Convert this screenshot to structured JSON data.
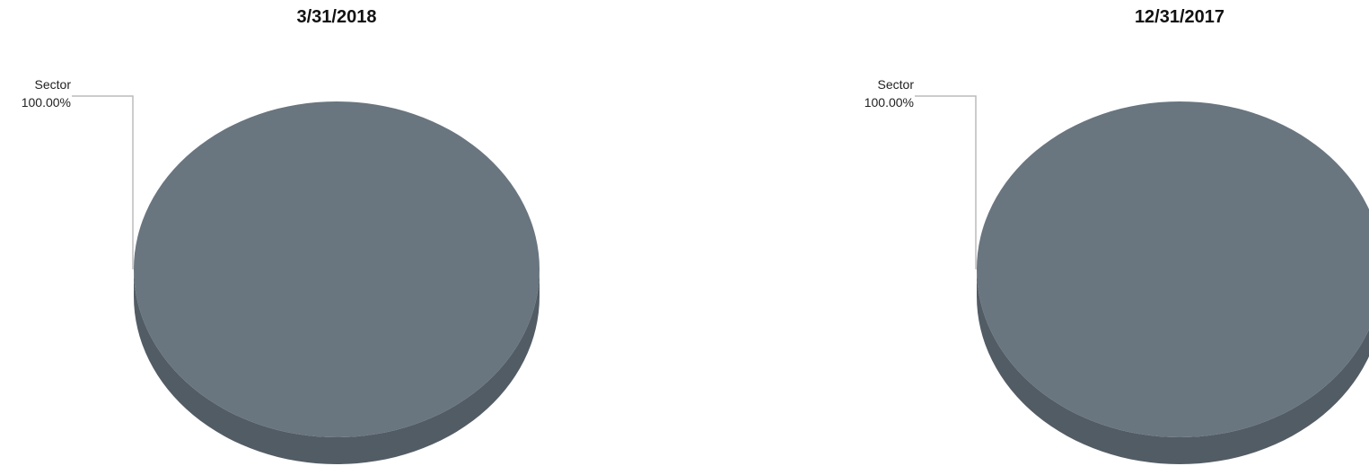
{
  "chart_data": [
    {
      "type": "pie",
      "title": "3/31/2018",
      "slices": [
        {
          "label": "Sector",
          "value": 100.0,
          "percent_label": "100.00%"
        }
      ],
      "style": "3d",
      "colors": {
        "top": "#69757f",
        "side": "#525c65",
        "leader": "#bbbbbb"
      }
    },
    {
      "type": "pie",
      "title": "12/31/2017",
      "slices": [
        {
          "label": "Sector",
          "value": 100.0,
          "percent_label": "100.00%"
        }
      ],
      "style": "3d",
      "colors": {
        "top": "#69757f",
        "side": "#525c65",
        "leader": "#bbbbbb"
      }
    }
  ]
}
